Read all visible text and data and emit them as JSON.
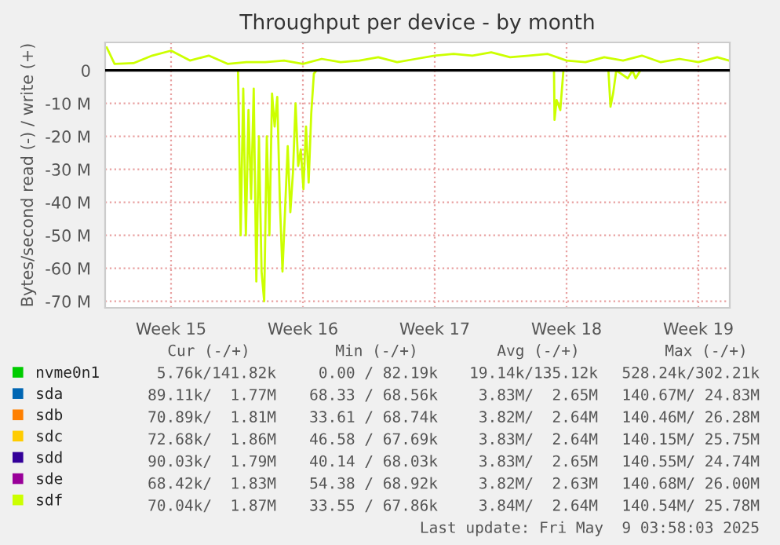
{
  "chart_data": {
    "type": "line",
    "title": "Throughput per device - by month",
    "ylabel": "Bytes/second read (-) / write (+)",
    "xlim": [
      "2025-04-06T00:00",
      "2025-05-09T04:00"
    ],
    "ylim": [
      -72,
      8.5
    ],
    "xticks": [
      {
        "value": "2025-04-09T12:00",
        "label": "Week 15"
      },
      {
        "value": "2025-04-16T12:00",
        "label": "Week 16"
      },
      {
        "value": "2025-04-23T12:00",
        "label": "Week 17"
      },
      {
        "value": "2025-04-30T12:00",
        "label": "Week 18"
      },
      {
        "value": "2025-05-07T12:00",
        "label": "Week 19"
      }
    ],
    "yticks": [
      {
        "value": -70,
        "label": "-70 M"
      },
      {
        "value": -60,
        "label": "-60 M"
      },
      {
        "value": -50,
        "label": "-50 M"
      },
      {
        "value": -40,
        "label": "-40 M"
      },
      {
        "value": -30,
        "label": "-30 M"
      },
      {
        "value": -20,
        "label": "-20 M"
      },
      {
        "value": -10,
        "label": "-10 M"
      },
      0
    ],
    "grid": true,
    "legend": "bottom",
    "line_style": "solid",
    "marker": "none",
    "ref_lines": [
      {
        "axis": "y",
        "value": 0,
        "color": "#000000"
      }
    ],
    "series": [
      {
        "name": "nvme0n1",
        "color": "#00cc00"
      },
      {
        "name": "sda",
        "color": "#0066b3"
      },
      {
        "name": "sdb",
        "color": "#ff8000"
      },
      {
        "name": "sdc",
        "color": "#ffcc00"
      },
      {
        "name": "sdd",
        "color": "#330099"
      },
      {
        "name": "sde",
        "color": "#990099"
      },
      {
        "name": "sdf",
        "color": "#ccff00",
        "x": [
          "2025-04-06T02:00",
          "2025-04-06T12:00",
          "2025-04-07T12:00",
          "2025-04-08T12:00",
          "2025-04-09T12:00",
          "2025-04-10T12:00",
          "2025-04-11T12:00",
          "2025-04-12T12:00",
          "2025-04-13T12:00",
          "2025-04-14T12:00",
          "2025-04-15T12:00",
          "2025-04-16T12:00",
          "2025-04-17T12:00",
          "2025-04-18T12:00",
          "2025-04-19T12:00",
          "2025-04-20T12:00",
          "2025-04-21T12:00",
          "2025-04-22T12:00",
          "2025-04-23T12:00",
          "2025-04-24T12:00",
          "2025-04-25T12:00",
          "2025-04-26T12:00",
          "2025-04-27T12:00",
          "2025-04-28T12:00",
          "2025-04-29T12:00",
          "2025-04-30T12:00",
          "2025-05-01T12:00",
          "2025-05-02T12:00",
          "2025-05-03T12:00",
          "2025-05-04T12:00",
          "2025-05-05T12:00",
          "2025-05-06T12:00",
          "2025-05-07T12:00",
          "2025-05-08T12:00",
          "2025-05-09T03:00"
        ],
        "values": [
          7.0,
          2.0,
          2.2,
          4.5,
          6.0,
          3.0,
          4.5,
          2.0,
          2.5,
          2.5,
          3.0,
          2.0,
          3.5,
          2.5,
          3.0,
          4.0,
          2.5,
          3.5,
          4.5,
          5.0,
          4.5,
          5.5,
          4.0,
          4.5,
          5.0,
          3.0,
          2.5,
          4.0,
          3.0,
          4.5,
          2.5,
          3.5,
          2.5,
          4.0,
          3.0
        ]
      },
      {
        "color": "#ccff00",
        "x": [
          "2025-04-13T01:20",
          "2025-04-13T04:40",
          "2025-04-13T08:00",
          "2025-04-13T11:20",
          "2025-04-13T14:40",
          "2025-04-13T18:00",
          "2025-04-13T21:20",
          "2025-04-14T00:40",
          "2025-04-14T04:00",
          "2025-04-14T07:20",
          "2025-04-14T10:40",
          "2025-04-14T14:00",
          "2025-04-14T17:20",
          "2025-04-14T20:40",
          "2025-04-15T00:00",
          "2025-04-15T03:20",
          "2025-04-15T06:40",
          "2025-04-15T10:00",
          "2025-04-15T13:20",
          "2025-04-15T16:40",
          "2025-04-15T20:00",
          "2025-04-15T23:20",
          "2025-04-16T02:40",
          "2025-04-16T06:00",
          "2025-04-16T09:20",
          "2025-04-16T12:40",
          "2025-04-16T16:00",
          "2025-04-16T19:20",
          "2025-04-16T22:40",
          "2025-04-17T02:00",
          "2025-04-17T05:20",
          "2025-04-23T00:00",
          "2025-04-29T20:00",
          "2025-04-29T20:40",
          "2025-04-29T23:20",
          "2025-04-30T04:00",
          "2025-04-30T08:00",
          "2025-05-01T12:00",
          "2025-05-02T17:20",
          "2025-05-02T20:00",
          "2025-05-02T23:20",
          "2025-05-03T03:20",
          "2025-05-03T18:00",
          "2025-05-04T00:00",
          "2025-05-04T04:00",
          "2025-05-04T10:00"
        ],
        "values": [
          0,
          -50,
          -5.5,
          -50,
          -12,
          -39,
          -5.5,
          -64,
          -20,
          -61,
          -70,
          -20,
          -50,
          -7,
          -17,
          -8,
          -40,
          -61,
          -42,
          -23,
          -43,
          -31,
          -10,
          -29,
          -24,
          -36,
          -17,
          -34,
          -13,
          -1,
          0,
          null,
          0,
          -15,
          -9,
          -12,
          0,
          null,
          0,
          -11,
          -7,
          0,
          -2.4,
          0,
          -2.4,
          0
        ]
      }
    ],
    "annotations": [
      "Cur (-/+)",
      "Min (-/+)",
      "Avg (-/+)",
      "Max (-/+)",
      "5.76k/141.82k",
      "0.00 / 82.19k",
      "19.14k/135.12k",
      "528.24k/302.21k",
      "89.11k/  1.77M",
      "68.33 / 68.56k",
      "3.83M/  2.65M",
      "140.67M/ 24.83M",
      "70.89k/  1.81M",
      "33.61 / 68.74k",
      "3.82M/  2.64M",
      "140.46M/ 26.28M",
      "72.68k/  1.86M",
      "46.58 / 67.69k",
      "3.83M/  2.64M",
      "140.15M/ 25.75M",
      "90.03k/  1.79M",
      "40.14 / 68.03k",
      "3.83M/  2.65M",
      "140.55M/ 24.74M",
      "68.42k/  1.83M",
      "54.38 / 68.92k",
      "3.82M/  2.63M",
      "140.68M/ 26.00M",
      "70.04k/  1.87M",
      "33.55 / 67.86k",
      "3.84M/  2.64M",
      "140.54M/ 25.78M",
      "Last update: Fri May  9 03:58:03 2025"
    ]
  }
}
